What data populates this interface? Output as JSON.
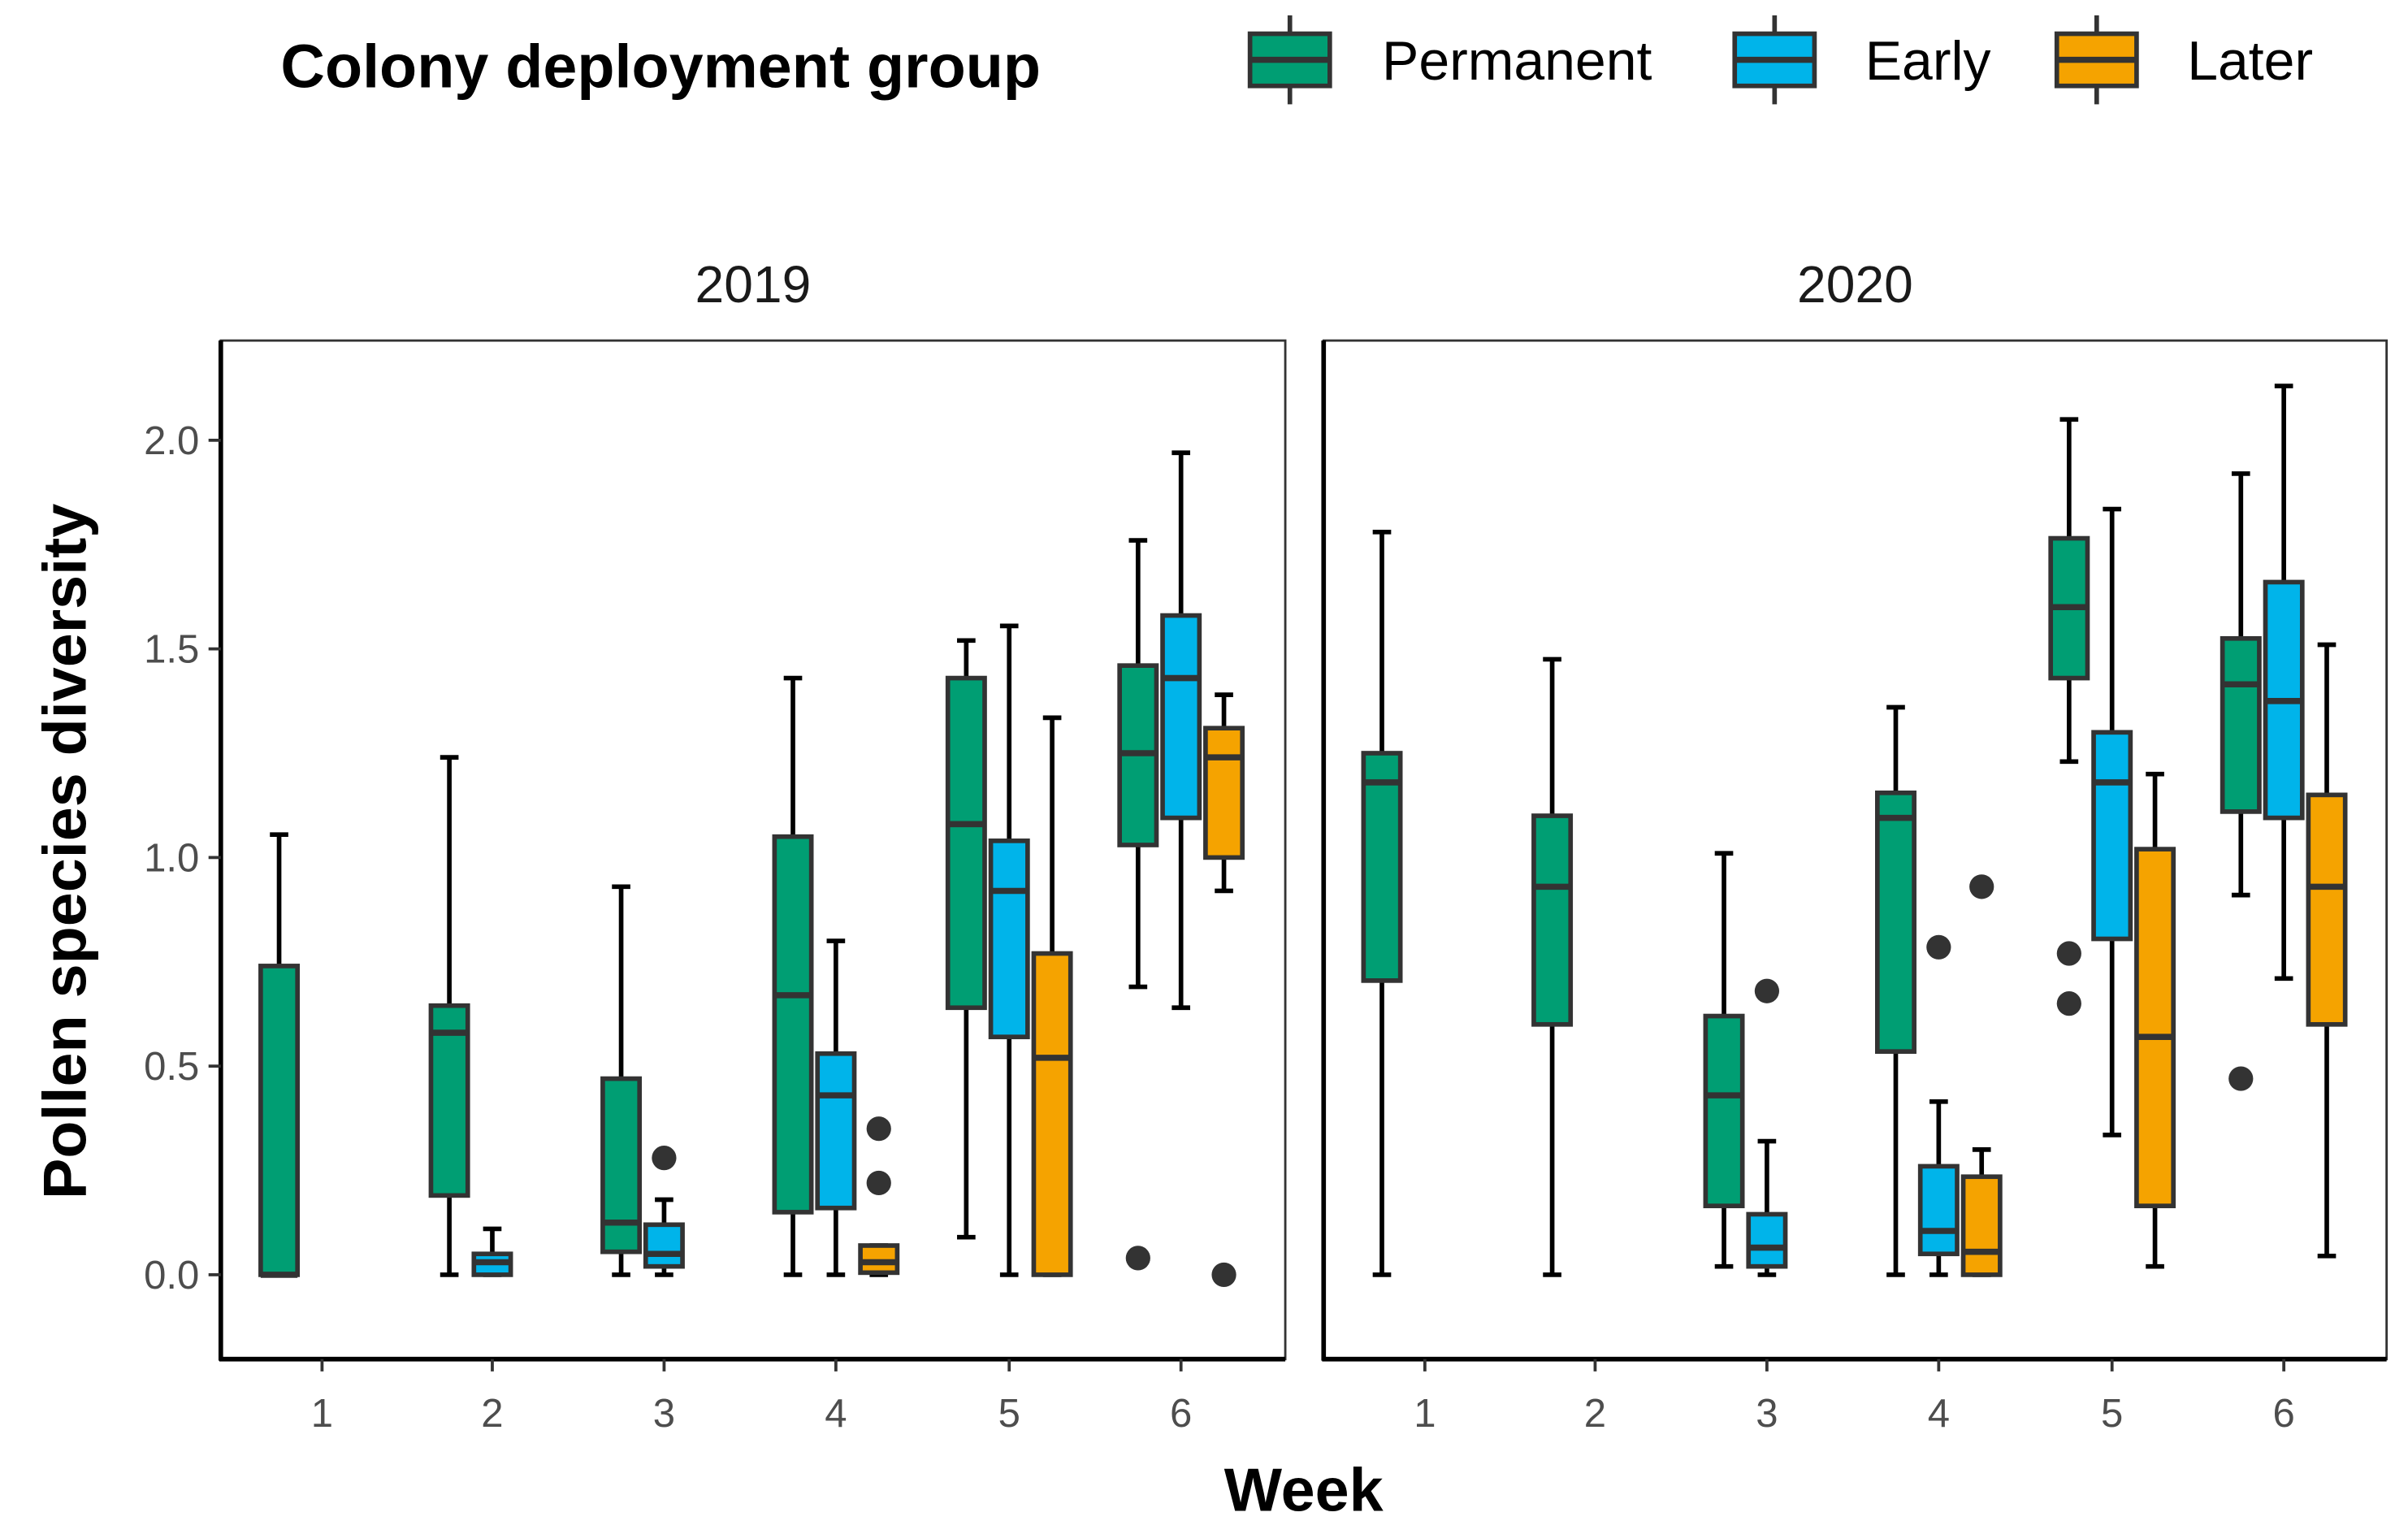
{
  "chart_data": {
    "type": "boxplot",
    "title": "",
    "xlabel": "Week",
    "ylabel": "Pollen species diversity",
    "ylim": [
      -0.2,
      2.3
    ],
    "yticks": [
      "0.0",
      "0.5",
      "1.0",
      "1.5",
      "2.0"
    ],
    "ytick_values": [
      0,
      0.5,
      1.0,
      1.5,
      2.0
    ],
    "categories": [
      "1",
      "2",
      "3",
      "4",
      "5",
      "6"
    ],
    "legend": {
      "title": "Colony deployment group",
      "placement": "top",
      "entries": [
        {
          "name": "Permanent",
          "color": "#009E73"
        },
        {
          "name": "Early",
          "color": "#00B4EA"
        },
        {
          "name": "Later",
          "color": "#F5A300"
        }
      ]
    },
    "panels": [
      {
        "label": "2019",
        "boxes": [
          {
            "week": "1",
            "group": "Permanent",
            "low": 0,
            "q1": 0,
            "median": 0,
            "q3": 0.74,
            "high": 1.055,
            "outliers": []
          },
          {
            "week": "2",
            "group": "Permanent",
            "low": 0,
            "q1": 0.19,
            "median": 0.58,
            "q3": 0.645,
            "high": 1.24,
            "outliers": []
          },
          {
            "week": "2",
            "group": "Early",
            "low": 0,
            "q1": 0,
            "median": 0.03,
            "q3": 0.05,
            "high": 0.11,
            "outliers": []
          },
          {
            "week": "3",
            "group": "Permanent",
            "low": 0,
            "q1": 0.055,
            "median": 0.125,
            "q3": 0.47,
            "high": 0.93,
            "outliers": []
          },
          {
            "week": "3",
            "group": "Early",
            "low": 0,
            "q1": 0.02,
            "median": 0.05,
            "q3": 0.12,
            "high": 0.18,
            "outliers": [
              0.28
            ]
          },
          {
            "week": "4",
            "group": "Permanent",
            "low": 0,
            "q1": 0.15,
            "median": 0.67,
            "q3": 1.05,
            "high": 1.43,
            "outliers": []
          },
          {
            "week": "4",
            "group": "Early",
            "low": 0,
            "q1": 0.16,
            "median": 0.43,
            "q3": 0.53,
            "high": 0.8,
            "outliers": []
          },
          {
            "week": "4",
            "group": "Later",
            "low": 0,
            "q1": 0.005,
            "median": 0.03,
            "q3": 0.07,
            "high": 0.07,
            "outliers": [
              0.22,
              0.35
            ]
          },
          {
            "week": "5",
            "group": "Permanent",
            "low": 0.09,
            "q1": 0.64,
            "median": 1.08,
            "q3": 1.43,
            "high": 1.52,
            "outliers": []
          },
          {
            "week": "5",
            "group": "Early",
            "low": 0,
            "q1": 0.57,
            "median": 0.92,
            "q3": 1.04,
            "high": 1.555,
            "outliers": []
          },
          {
            "week": "5",
            "group": "Later",
            "low": 0,
            "q1": 0,
            "median": 0.52,
            "q3": 0.77,
            "high": 1.335,
            "outliers": []
          },
          {
            "week": "6",
            "group": "Permanent",
            "low": 0.69,
            "q1": 1.03,
            "median": 1.25,
            "q3": 1.46,
            "high": 1.76,
            "outliers": [
              0.04
            ]
          },
          {
            "week": "6",
            "group": "Early",
            "low": 0.64,
            "q1": 1.095,
            "median": 1.43,
            "q3": 1.58,
            "high": 1.97,
            "outliers": []
          },
          {
            "week": "6",
            "group": "Later",
            "low": 0.92,
            "q1": 1.0,
            "median": 1.24,
            "q3": 1.31,
            "high": 1.39,
            "outliers": [
              0.0
            ]
          }
        ]
      },
      {
        "label": "2020",
        "boxes": [
          {
            "week": "1",
            "group": "Permanent",
            "low": 0,
            "q1": 0.705,
            "median": 1.18,
            "q3": 1.25,
            "high": 1.78,
            "outliers": []
          },
          {
            "week": "2",
            "group": "Permanent",
            "low": 0,
            "q1": 0.6,
            "median": 0.93,
            "q3": 1.1,
            "high": 1.475,
            "outliers": []
          },
          {
            "week": "3",
            "group": "Permanent",
            "low": 0.02,
            "q1": 0.165,
            "median": 0.43,
            "q3": 0.62,
            "high": 1.01,
            "outliers": []
          },
          {
            "week": "3",
            "group": "Early",
            "low": 0,
            "q1": 0.02,
            "median": 0.065,
            "q3": 0.145,
            "high": 0.32,
            "outliers": [
              0.68
            ]
          },
          {
            "week": "4",
            "group": "Permanent",
            "low": 0,
            "q1": 0.535,
            "median": 1.095,
            "q3": 1.155,
            "high": 1.36,
            "outliers": []
          },
          {
            "week": "4",
            "group": "Early",
            "low": 0,
            "q1": 0.05,
            "median": 0.105,
            "q3": 0.26,
            "high": 0.415,
            "outliers": [
              0.785
            ]
          },
          {
            "week": "4",
            "group": "Later",
            "low": 0,
            "q1": 0,
            "median": 0.055,
            "q3": 0.235,
            "high": 0.3,
            "outliers": [
              0.93
            ]
          },
          {
            "week": "5",
            "group": "Permanent",
            "low": 1.23,
            "q1": 1.43,
            "median": 1.6,
            "q3": 1.765,
            "high": 2.05,
            "outliers": [
              0.77,
              0.65
            ]
          },
          {
            "week": "5",
            "group": "Early",
            "low": 0.335,
            "q1": 0.805,
            "median": 1.18,
            "q3": 1.3,
            "high": 1.835,
            "outliers": []
          },
          {
            "week": "5",
            "group": "Later",
            "low": 0.02,
            "q1": 0.165,
            "median": 0.57,
            "q3": 1.02,
            "high": 1.2,
            "outliers": []
          },
          {
            "week": "6",
            "group": "Permanent",
            "low": 0.91,
            "q1": 1.11,
            "median": 1.415,
            "q3": 1.525,
            "high": 1.92,
            "outliers": [
              0.47
            ]
          },
          {
            "week": "6",
            "group": "Early",
            "low": 0.71,
            "q1": 1.095,
            "median": 1.375,
            "q3": 1.66,
            "high": 2.13,
            "outliers": []
          },
          {
            "week": "6",
            "group": "Later",
            "low": 0.045,
            "q1": 0.6,
            "median": 0.93,
            "q3": 1.15,
            "high": 1.51,
            "outliers": []
          }
        ]
      }
    ]
  }
}
